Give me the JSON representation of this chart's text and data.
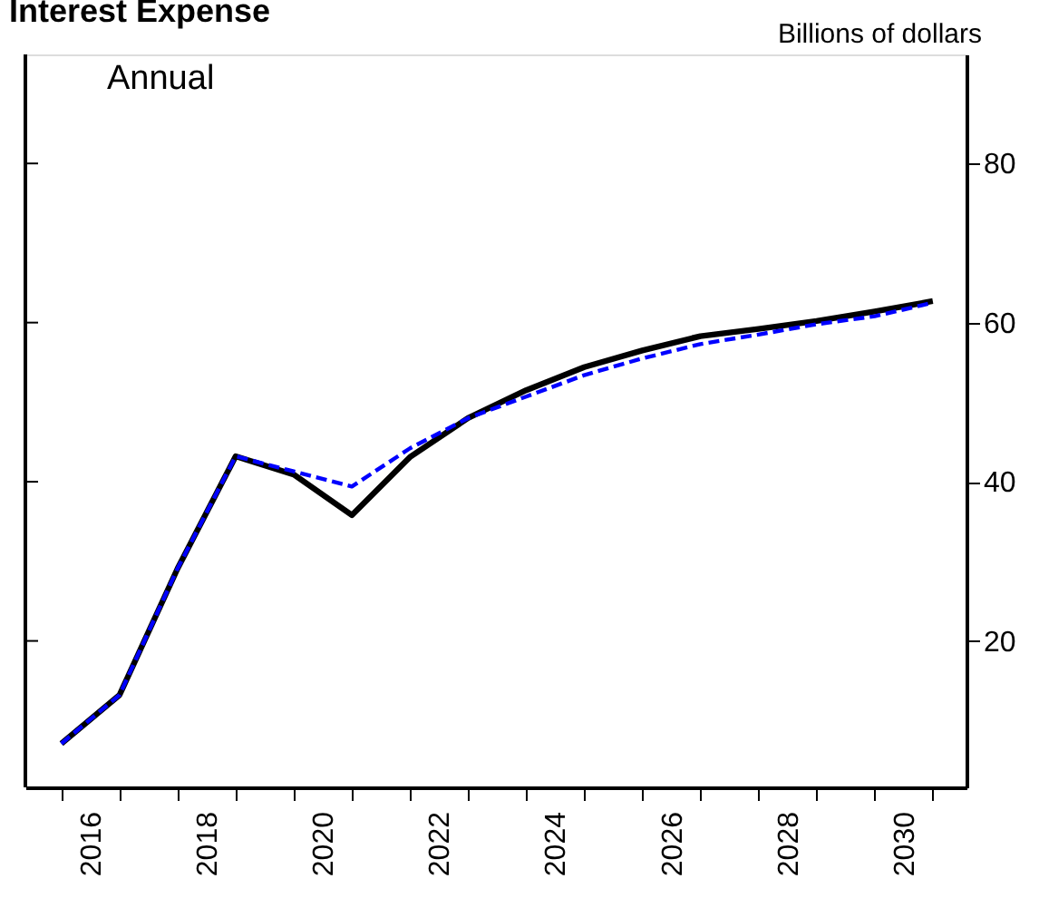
{
  "chart_data": {
    "type": "line",
    "title": "Interest Expense",
    "ylabel": "Billions of dollars",
    "annotations": [
      "Annual"
    ],
    "x": [
      2016,
      2017,
      2018,
      2019,
      2020,
      2021,
      2022,
      2023,
      2024,
      2025,
      2026,
      2027,
      2028,
      2029,
      2030,
      2031
    ],
    "series": [
      {
        "color": "#000000",
        "line_style": "solid",
        "values": [
          7.1,
          13.2,
          29.1,
          43.2,
          40.9,
          35.8,
          43.1,
          48.0,
          51.5,
          54.4,
          56.5,
          58.3,
          59.2,
          60.2,
          61.4,
          62.7
        ]
      },
      {
        "color": "#0000ff",
        "line_style": "dashed",
        "values": [
          7.1,
          13.2,
          29.1,
          43.2,
          41.3,
          39.4,
          44.2,
          48.0,
          50.7,
          53.4,
          55.5,
          57.3,
          58.5,
          59.8,
          60.8,
          62.5
        ]
      }
    ],
    "xlim": [
      2015.38,
      2031.58
    ],
    "xticks": [
      {
        "value": 2016,
        "label": null
      },
      {
        "value": 2016.5,
        "label": "2016"
      },
      {
        "value": 2017,
        "label": null
      },
      {
        "value": 2018,
        "label": null
      },
      {
        "value": 2018.5,
        "label": "2018"
      },
      {
        "value": 2019,
        "label": null
      },
      {
        "value": 2020,
        "label": null
      },
      {
        "value": 2020.5,
        "label": "2020"
      },
      {
        "value": 2021,
        "label": null
      },
      {
        "value": 2022,
        "label": null
      },
      {
        "value": 2022.5,
        "label": "2022"
      },
      {
        "value": 2023,
        "label": null
      },
      {
        "value": 2024,
        "label": null
      },
      {
        "value": 2024.5,
        "label": "2024"
      },
      {
        "value": 2025,
        "label": null
      },
      {
        "value": 2026,
        "label": null
      },
      {
        "value": 2026.5,
        "label": "2026"
      },
      {
        "value": 2027,
        "label": null
      },
      {
        "value": 2028,
        "label": null
      },
      {
        "value": 2028.5,
        "label": "2028"
      },
      {
        "value": 2029,
        "label": null
      },
      {
        "value": 2030,
        "label": null
      },
      {
        "value": 2030.5,
        "label": "2030"
      },
      {
        "value": 2031,
        "label": null
      }
    ],
    "ylim": [
      1.6,
      93.7
    ],
    "yticks": [
      20,
      40,
      60,
      80
    ],
    "grid": false,
    "legend": false,
    "marker": "none"
  }
}
